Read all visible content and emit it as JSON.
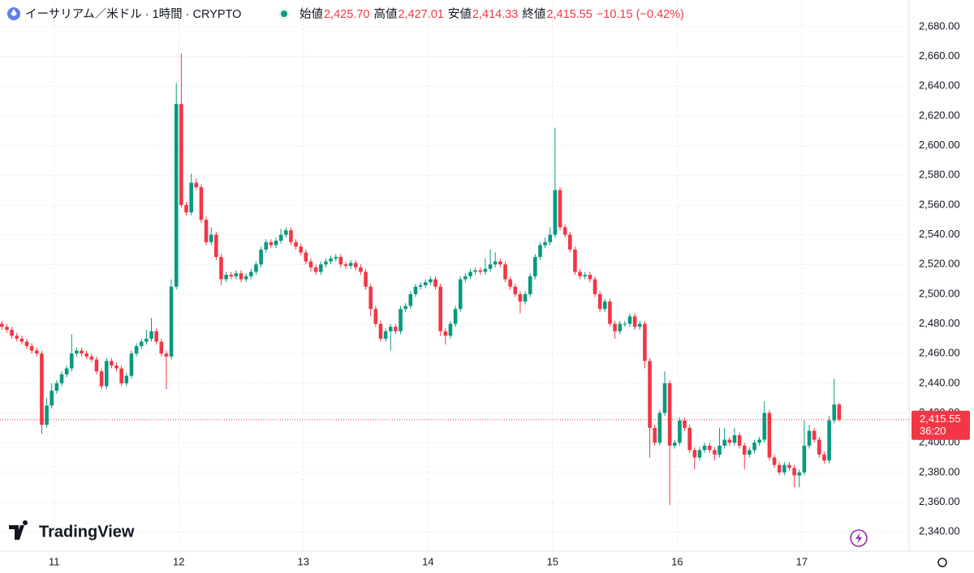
{
  "chart_data": {
    "type": "candlestick",
    "title": "イーサリアム／米ドル · 1時間 · CRYPTO",
    "legend": [
      {
        "label": "始値",
        "value": "2,425.70"
      },
      {
        "label": "高値",
        "value": "2,427.01"
      },
      {
        "label": "安値",
        "value": "2,414.33"
      },
      {
        "label": "終値",
        "value": "2,415.55"
      }
    ],
    "change": "−10.15 (−0.42%)",
    "brand": "TradingView",
    "last_price_label": "2,415.55",
    "countdown": "36:20",
    "up_color": "#089981",
    "down_color": "#f23645",
    "x": [
      10.54,
      10.58,
      10.62,
      10.66,
      10.7,
      10.74,
      10.78,
      10.82,
      10.86,
      10.9,
      10.94,
      10.98,
      11.02,
      11.06,
      11.1,
      11.14,
      11.18,
      11.22,
      11.26,
      11.3,
      11.34,
      11.38,
      11.42,
      11.46,
      11.5,
      11.54,
      11.58,
      11.62,
      11.66,
      11.7,
      11.74,
      11.78,
      11.82,
      11.86,
      11.9,
      11.94,
      11.98,
      12.02,
      12.06,
      12.1,
      12.14,
      12.18,
      12.22,
      12.26,
      12.3,
      12.34,
      12.38,
      12.42,
      12.46,
      12.5,
      12.54,
      12.58,
      12.62,
      12.66,
      12.7,
      12.74,
      12.78,
      12.82,
      12.86,
      12.9,
      12.94,
      12.98,
      13.02,
      13.06,
      13.1,
      13.14,
      13.18,
      13.22,
      13.26,
      13.3,
      13.34,
      13.38,
      13.42,
      13.46,
      13.5,
      13.54,
      13.58,
      13.62,
      13.66,
      13.7,
      13.74,
      13.78,
      13.82,
      13.86,
      13.9,
      13.94,
      13.98,
      14.02,
      14.06,
      14.1,
      14.14,
      14.18,
      14.22,
      14.26,
      14.3,
      14.34,
      14.38,
      14.42,
      14.46,
      14.5,
      14.54,
      14.58,
      14.62,
      14.66,
      14.7,
      14.74,
      14.78,
      14.82,
      14.86,
      14.9,
      14.94,
      14.98,
      15.02,
      15.06,
      15.1,
      15.14,
      15.18,
      15.22,
      15.26,
      15.3,
      15.34,
      15.38,
      15.42,
      15.46,
      15.5,
      15.54,
      15.58,
      15.62,
      15.66,
      15.7,
      15.74,
      15.78,
      15.82,
      15.86,
      15.9,
      15.94,
      15.98,
      16.02,
      16.06,
      16.1,
      16.14,
      16.18,
      16.22,
      16.26,
      16.3,
      16.34,
      16.38,
      16.42,
      16.46,
      16.5,
      16.54,
      16.58,
      16.62,
      16.66,
      16.7,
      16.74,
      16.78,
      16.82,
      16.86,
      16.9,
      16.94,
      16.98,
      17.02,
      17.06,
      17.1,
      17.14,
      17.18,
      17.22,
      17.26,
      17.3
    ],
    "open": [
      2482,
      2480,
      2478,
      2476,
      2472,
      2470,
      2468,
      2465,
      2462,
      2460,
      2412,
      2425,
      2435,
      2440,
      2446,
      2450,
      2460,
      2462,
      2460,
      2458,
      2456,
      2448,
      2438,
      2455,
      2452,
      2450,
      2440,
      2445,
      2460,
      2465,
      2468,
      2470,
      2475,
      2468,
      2460,
      2458,
      2505,
      2628,
      2560,
      2555,
      2575,
      2572,
      2550,
      2535,
      2540,
      2525,
      2510,
      2513,
      2512,
      2514,
      2510,
      2512,
      2515,
      2520,
      2530,
      2535,
      2533,
      2536,
      2540,
      2543,
      2535,
      2532,
      2528,
      2522,
      2518,
      2515,
      2520,
      2522,
      2524,
      2525,
      2520,
      2519,
      2521,
      2518,
      2515,
      2505,
      2490,
      2480,
      2470,
      2475,
      2478,
      2475,
      2490,
      2492,
      2500,
      2505,
      2506,
      2508,
      2510,
      2505,
      2475,
      2472,
      2480,
      2490,
      2510,
      2512,
      2515,
      2516,
      2515,
      2517,
      2520,
      2522,
      2520,
      2510,
      2505,
      2500,
      2495,
      2500,
      2512,
      2525,
      2533,
      2535,
      2540,
      2570,
      2545,
      2540,
      2530,
      2515,
      2512,
      2513,
      2510,
      2500,
      2490,
      2495,
      2480,
      2475,
      2480,
      2480,
      2485,
      2478,
      2480,
      2455,
      2410,
      2400,
      2420,
      2440,
      2398,
      2400,
      2415,
      2410,
      2395,
      2390,
      2395,
      2398,
      2395,
      2392,
      2398,
      2402,
      2400,
      2405,
      2398,
      2392,
      2395,
      2400,
      2402,
      2420,
      2390,
      2385,
      2380,
      2385,
      2383,
      2378,
      2380,
      2398,
      2408,
      2402,
      2392,
      2388,
      2415,
      2425.7
    ],
    "high": [
      2484,
      2482,
      2480,
      2478,
      2474,
      2472,
      2470,
      2467,
      2464,
      2462,
      2430,
      2440,
      2442,
      2448,
      2452,
      2473,
      2464,
      2464,
      2462,
      2460,
      2458,
      2450,
      2457,
      2457,
      2454,
      2452,
      2447,
      2462,
      2467,
      2470,
      2476,
      2484,
      2477,
      2470,
      2462,
      2510,
      2642,
      2662,
      2562,
      2581,
      2578,
      2574,
      2552,
      2545,
      2542,
      2527,
      2515,
      2515,
      2516,
      2516,
      2514,
      2517,
      2522,
      2532,
      2537,
      2537,
      2538,
      2544,
      2545,
      2545,
      2537,
      2534,
      2530,
      2524,
      2520,
      2522,
      2524,
      2526,
      2527,
      2527,
      2522,
      2523,
      2523,
      2520,
      2517,
      2507,
      2492,
      2482,
      2477,
      2480,
      2480,
      2492,
      2494,
      2502,
      2507,
      2508,
      2510,
      2512,
      2512,
      2507,
      2477,
      2482,
      2492,
      2512,
      2514,
      2517,
      2518,
      2518,
      2524,
      2530,
      2528,
      2524,
      2522,
      2512,
      2507,
      2502,
      2502,
      2514,
      2527,
      2535,
      2538,
      2545,
      2612,
      2572,
      2547,
      2542,
      2532,
      2517,
      2515,
      2515,
      2512,
      2502,
      2497,
      2497,
      2482,
      2482,
      2482,
      2487,
      2487,
      2482,
      2482,
      2457,
      2412,
      2422,
      2448,
      2442,
      2402,
      2417,
      2417,
      2412,
      2397,
      2397,
      2400,
      2400,
      2397,
      2410,
      2410,
      2404,
      2410,
      2407,
      2400,
      2397,
      2402,
      2404,
      2428,
      2422,
      2392,
      2387,
      2387,
      2387,
      2385,
      2382,
      2415,
      2412,
      2410,
      2404,
      2394,
      2418,
      2443,
      2427.01
    ],
    "low": [
      2478,
      2476,
      2474,
      2470,
      2468,
      2466,
      2463,
      2460,
      2458,
      2406,
      2410,
      2423,
      2433,
      2438,
      2444,
      2448,
      2458,
      2458,
      2456,
      2454,
      2446,
      2436,
      2436,
      2450,
      2448,
      2438,
      2438,
      2443,
      2458,
      2463,
      2466,
      2468,
      2466,
      2458,
      2436,
      2456,
      2503,
      2558,
      2553,
      2553,
      2570,
      2548,
      2533,
      2533,
      2523,
      2506,
      2508,
      2510,
      2510,
      2508,
      2508,
      2510,
      2513,
      2518,
      2528,
      2531,
      2531,
      2534,
      2538,
      2533,
      2530,
      2526,
      2520,
      2515,
      2513,
      2513,
      2518,
      2520,
      2522,
      2518,
      2517,
      2517,
      2516,
      2513,
      2503,
      2485,
      2478,
      2468,
      2468,
      2462,
      2473,
      2473,
      2488,
      2490,
      2498,
      2503,
      2504,
      2506,
      2503,
      2472,
      2466,
      2470,
      2478,
      2488,
      2508,
      2510,
      2513,
      2513,
      2513,
      2515,
      2518,
      2518,
      2508,
      2503,
      2498,
      2487,
      2493,
      2498,
      2510,
      2523,
      2531,
      2533,
      2538,
      2543,
      2538,
      2528,
      2513,
      2510,
      2510,
      2508,
      2498,
      2488,
      2488,
      2478,
      2470,
      2473,
      2478,
      2478,
      2476,
      2476,
      2450,
      2390,
      2398,
      2398,
      2418,
      2358,
      2396,
      2398,
      2408,
      2393,
      2382,
      2388,
      2393,
      2393,
      2388,
      2390,
      2396,
      2398,
      2398,
      2396,
      2382,
      2390,
      2393,
      2398,
      2400,
      2388,
      2383,
      2378,
      2378,
      2381,
      2370,
      2370,
      2378,
      2396,
      2400,
      2390,
      2386,
      2386,
      2413,
      2414.33
    ],
    "close": [
      2480,
      2478,
      2476,
      2472,
      2470,
      2468,
      2465,
      2462,
      2460,
      2412,
      2425,
      2435,
      2440,
      2446,
      2450,
      2460,
      2462,
      2460,
      2458,
      2456,
      2448,
      2438,
      2455,
      2452,
      2450,
      2440,
      2445,
      2460,
      2465,
      2468,
      2470,
      2475,
      2468,
      2460,
      2458,
      2505,
      2628,
      2560,
      2555,
      2575,
      2572,
      2550,
      2535,
      2540,
      2525,
      2510,
      2513,
      2512,
      2514,
      2510,
      2512,
      2515,
      2520,
      2530,
      2535,
      2533,
      2536,
      2540,
      2543,
      2535,
      2532,
      2528,
      2522,
      2518,
      2515,
      2520,
      2522,
      2524,
      2525,
      2520,
      2519,
      2521,
      2518,
      2515,
      2505,
      2490,
      2480,
      2470,
      2475,
      2478,
      2475,
      2490,
      2492,
      2500,
      2505,
      2506,
      2508,
      2510,
      2505,
      2475,
      2472,
      2480,
      2490,
      2510,
      2512,
      2515,
      2516,
      2515,
      2517,
      2520,
      2522,
      2520,
      2510,
      2505,
      2500,
      2495,
      2500,
      2512,
      2525,
      2533,
      2535,
      2540,
      2570,
      2545,
      2540,
      2530,
      2515,
      2512,
      2513,
      2510,
      2500,
      2490,
      2495,
      2480,
      2475,
      2480,
      2480,
      2485,
      2478,
      2480,
      2455,
      2410,
      2400,
      2420,
      2440,
      2398,
      2400,
      2415,
      2410,
      2395,
      2390,
      2395,
      2398,
      2395,
      2392,
      2398,
      2402,
      2400,
      2405,
      2398,
      2392,
      2395,
      2400,
      2402,
      2420,
      2390,
      2385,
      2380,
      2385,
      2383,
      2378,
      2380,
      2398,
      2408,
      2402,
      2392,
      2388,
      2415,
      2425.7,
      2415.55
    ],
    "xlim": [
      10.565,
      17.861
    ],
    "xticks": [
      11,
      12,
      13,
      14,
      15,
      16,
      17
    ],
    "ylim": [
      2327,
      2698
    ],
    "yticks": [
      {
        "value": 2340,
        "label": "2,340.00"
      },
      {
        "value": 2360,
        "label": "2,360.00"
      },
      {
        "value": 2380,
        "label": "2,380.00"
      },
      {
        "value": 2400,
        "label": "2,400.00"
      },
      {
        "value": 2420,
        "label": "2,420.00"
      },
      {
        "value": 2440,
        "label": "2,440.00"
      },
      {
        "value": 2460,
        "label": "2,460.00"
      },
      {
        "value": 2480,
        "label": "2,480.00"
      },
      {
        "value": 2500,
        "label": "2,500.00"
      },
      {
        "value": 2520,
        "label": "2,520.00"
      },
      {
        "value": 2540,
        "label": "2,540.00"
      },
      {
        "value": 2560,
        "label": "2,560.00"
      },
      {
        "value": 2580,
        "label": "2,580.00"
      },
      {
        "value": 2600,
        "label": "2,600.00"
      },
      {
        "value": 2620,
        "label": "2,620.00"
      },
      {
        "value": 2640,
        "label": "2,640.00"
      },
      {
        "value": 2660,
        "label": "2,660.00"
      },
      {
        "value": 2680,
        "label": "2,680.00"
      }
    ],
    "grid": true
  }
}
